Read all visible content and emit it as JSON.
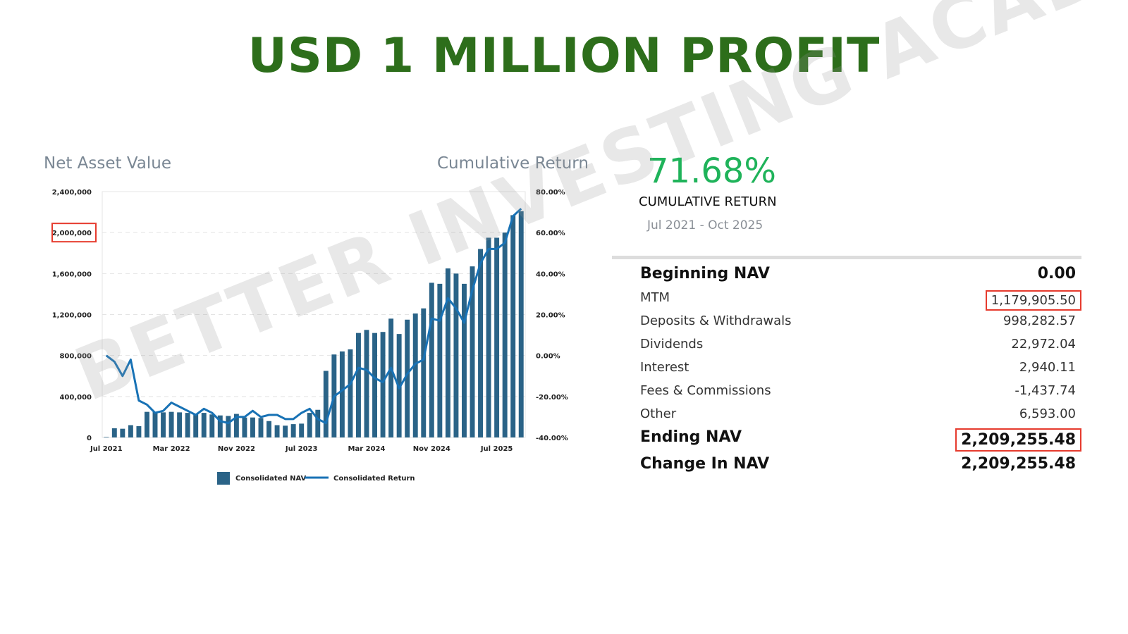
{
  "title": "USD 1 MILLION PROFIT",
  "left_label": "Net Asset Value",
  "right_label": "Cumulative Return",
  "summary": {
    "return": "71.68%",
    "return_label": "CUMULATIVE RETURN",
    "period": "Jul 2021 - Oct 2025"
  },
  "rows": [
    {
      "label": "Beginning NAV",
      "value": "0.00",
      "bold": true,
      "boxed": false
    },
    {
      "label": "MTM",
      "value": "1,179,905.50",
      "bold": false,
      "boxed": true
    },
    {
      "label": "Deposits & Withdrawals",
      "value": "998,282.57",
      "bold": false,
      "boxed": false
    },
    {
      "label": "Dividends",
      "value": "22,972.04",
      "bold": false,
      "boxed": false
    },
    {
      "label": "Interest",
      "value": "2,940.11",
      "bold": false,
      "boxed": false
    },
    {
      "label": "Fees & Commissions",
      "value": "-1,437.74",
      "bold": false,
      "boxed": false
    },
    {
      "label": "Other",
      "value": "6,593.00",
      "bold": false,
      "boxed": false
    },
    {
      "label": "Ending NAV",
      "value": "2,209,255.48",
      "bold": true,
      "boxed": true
    },
    {
      "label": "Change In NAV",
      "value": "2,209,255.48",
      "bold": true,
      "boxed": false
    }
  ],
  "watermark": "BETTER INVESTING ACADEMY",
  "colors": {
    "bar": "#2a6387",
    "line": "#1872b5",
    "title": "#2d6e1b",
    "return": "#1fb35a",
    "highlight": "#e63b2e"
  },
  "chart_data": {
    "type": "bar+line",
    "x_tick_labels": [
      "Jul 2021",
      "Mar 2022",
      "Nov 2022",
      "Jul 2023",
      "Mar 2024",
      "Nov 2024",
      "Jul 2025"
    ],
    "y_left": {
      "ticks": [
        "0",
        "400,000",
        "800,000",
        "1,200,000",
        "1,600,000",
        "2,000,000",
        "2,400,000"
      ],
      "range": [
        0,
        2400000
      ],
      "highlighted": "2,000,000"
    },
    "y_right": {
      "ticks": [
        "-40.00%",
        "-20.00%",
        "0.00%",
        "20.00%",
        "40.00%",
        "60.00%",
        "80.00%"
      ],
      "range": [
        -40,
        80
      ]
    },
    "legend": [
      "Consolidated NAV",
      "Consolidated Return"
    ],
    "legend_position": "bottom",
    "series": [
      {
        "name": "Consolidated NAV",
        "type": "bar",
        "values": [
          5000,
          90000,
          85000,
          120000,
          110000,
          250000,
          250000,
          245000,
          250000,
          245000,
          240000,
          230000,
          240000,
          225000,
          215000,
          210000,
          230000,
          195000,
          195000,
          190000,
          160000,
          120000,
          115000,
          130000,
          135000,
          240000,
          270000,
          650000,
          810000,
          840000,
          860000,
          1020000,
          1050000,
          1020000,
          1030000,
          1160000,
          1010000,
          1150000,
          1210000,
          1260000,
          1510000,
          1500000,
          1650000,
          1600000,
          1500000,
          1670000,
          1840000,
          1950000,
          1950000,
          2000000,
          2170000,
          2209255
        ]
      },
      {
        "name": "Consolidated Return",
        "type": "line",
        "values": [
          0,
          -3,
          -10,
          -2,
          -22,
          -24,
          -28,
          -27,
          -23,
          -25,
          -27,
          -29,
          -26,
          -28,
          -32,
          -33,
          -30,
          -30,
          -27,
          -30,
          -29,
          -29,
          -31,
          -31,
          -28,
          -26,
          -31,
          -33,
          -20,
          -17,
          -14,
          -6,
          -7,
          -11,
          -13,
          -6,
          -16,
          -9,
          -4,
          -2,
          18,
          17,
          28,
          23,
          16,
          32,
          45,
          52,
          52,
          55,
          68,
          71.68
        ]
      }
    ]
  }
}
